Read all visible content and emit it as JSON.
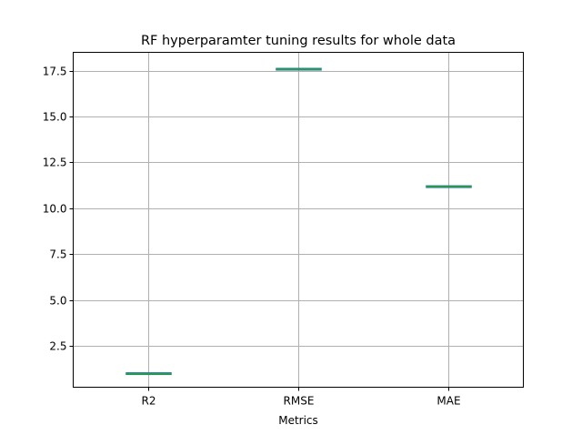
{
  "chart_data": {
    "type": "box",
    "title": "RF hyperparamter tuning results for whole data",
    "xlabel": "Metrics",
    "ylabel": "",
    "categories": [
      "R2",
      "RMSE",
      "MAE"
    ],
    "values": [
      0.99,
      17.58,
      11.18
    ],
    "ylim": [
      0.25,
      18.5
    ],
    "yticks": [
      2.5,
      5.0,
      7.5,
      10.0,
      12.5,
      15.0,
      17.5
    ],
    "ytick_labels": [
      "2.5",
      "5.0",
      "7.5",
      "10.0",
      "12.5",
      "15.0",
      "17.5"
    ],
    "grid": true,
    "colors": {
      "box": "#1f77b4",
      "median": "#2ca02c",
      "grid": "#b0b0b0",
      "axes": "#000000"
    }
  }
}
